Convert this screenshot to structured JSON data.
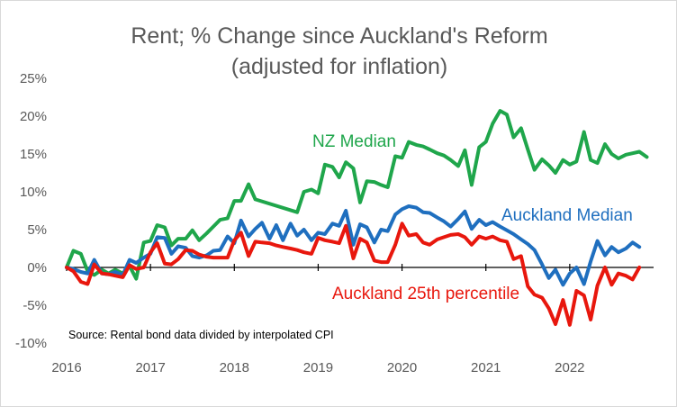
{
  "chart_data": {
    "type": "line",
    "title": "Rent; % Change since Auckland's Reform",
    "subtitle": "(adjusted for inflation)",
    "xlabel": "",
    "ylabel": "",
    "xlim": [
      2016.0,
      2023.0
    ],
    "ylim": [
      -10,
      25
    ],
    "y_ticks": [
      {
        "value": 25,
        "label": "25%"
      },
      {
        "value": 20,
        "label": "20%"
      },
      {
        "value": 15,
        "label": "15%"
      },
      {
        "value": 10,
        "label": "10%"
      },
      {
        "value": 5,
        "label": "5%"
      },
      {
        "value": 0,
        "label": "0%"
      },
      {
        "value": -5,
        "label": "-5%"
      },
      {
        "value": -10,
        "label": "-10%"
      }
    ],
    "x_ticks": [
      {
        "value": 2016,
        "label": "2016"
      },
      {
        "value": 2017,
        "label": "2017"
      },
      {
        "value": 2018,
        "label": "2018"
      },
      {
        "value": 2019,
        "label": "2019"
      },
      {
        "value": 2020,
        "label": "2020"
      },
      {
        "value": 2021,
        "label": "2021"
      },
      {
        "value": 2022,
        "label": "2022"
      }
    ],
    "grid": false,
    "legend": "inline labels",
    "annotation": "Source: Rental bond data divided by interpolated CPI",
    "series": [
      {
        "name": "NZ Median",
        "color": "#1fa64b",
        "points": [
          [
            2016.0,
            0.0
          ],
          [
            2016.08,
            2.2
          ],
          [
            2016.17,
            1.8
          ],
          [
            2016.25,
            -0.5
          ],
          [
            2016.33,
            -1.0
          ],
          [
            2016.42,
            -0.3
          ],
          [
            2016.5,
            -0.8
          ],
          [
            2016.58,
            -0.3
          ],
          [
            2016.67,
            -0.8
          ],
          [
            2016.75,
            0.2
          ],
          [
            2016.83,
            -1.5
          ],
          [
            2016.92,
            3.3
          ],
          [
            2017.0,
            3.5
          ],
          [
            2017.08,
            5.6
          ],
          [
            2017.17,
            5.3
          ],
          [
            2017.25,
            2.9
          ],
          [
            2017.33,
            3.8
          ],
          [
            2017.42,
            3.8
          ],
          [
            2017.5,
            4.9
          ],
          [
            2017.58,
            3.6
          ],
          [
            2017.67,
            4.5
          ],
          [
            2017.75,
            5.4
          ],
          [
            2017.83,
            6.3
          ],
          [
            2017.92,
            6.5
          ],
          [
            2018.0,
            8.8
          ],
          [
            2018.08,
            8.8
          ],
          [
            2018.17,
            11.0
          ],
          [
            2018.25,
            9.0
          ],
          [
            2018.75,
            7.3
          ],
          [
            2018.83,
            10.0
          ],
          [
            2018.92,
            10.3
          ],
          [
            2019.0,
            9.8
          ],
          [
            2019.08,
            13.6
          ],
          [
            2019.17,
            13.3
          ],
          [
            2019.25,
            11.9
          ],
          [
            2019.33,
            13.9
          ],
          [
            2019.42,
            13.1
          ],
          [
            2019.5,
            8.6
          ],
          [
            2019.58,
            11.4
          ],
          [
            2019.67,
            11.3
          ],
          [
            2019.75,
            10.9
          ],
          [
            2019.83,
            10.6
          ],
          [
            2019.92,
            14.7
          ],
          [
            2020.0,
            14.5
          ],
          [
            2020.08,
            16.6
          ],
          [
            2020.17,
            16.2
          ],
          [
            2020.25,
            16.0
          ],
          [
            2020.33,
            15.6
          ],
          [
            2020.42,
            15.1
          ],
          [
            2020.5,
            14.8
          ],
          [
            2020.58,
            14.2
          ],
          [
            2020.67,
            13.4
          ],
          [
            2020.75,
            15.5
          ],
          [
            2020.83,
            10.9
          ],
          [
            2020.92,
            15.9
          ],
          [
            2021.0,
            16.6
          ],
          [
            2021.08,
            19.0
          ],
          [
            2021.17,
            20.7
          ],
          [
            2021.25,
            20.2
          ],
          [
            2021.33,
            17.2
          ],
          [
            2021.42,
            18.4
          ],
          [
            2021.5,
            15.6
          ],
          [
            2021.58,
            12.9
          ],
          [
            2021.67,
            14.3
          ],
          [
            2021.75,
            13.5
          ],
          [
            2021.83,
            12.5
          ],
          [
            2021.92,
            14.2
          ],
          [
            2022.0,
            13.6
          ],
          [
            2022.08,
            14.0
          ],
          [
            2022.17,
            17.9
          ],
          [
            2022.25,
            14.2
          ],
          [
            2022.33,
            13.8
          ],
          [
            2022.42,
            16.3
          ],
          [
            2022.5,
            15.0
          ],
          [
            2022.58,
            14.4
          ],
          [
            2022.67,
            14.9
          ],
          [
            2022.75,
            15.1
          ],
          [
            2022.83,
            15.3
          ],
          [
            2022.92,
            14.6
          ]
        ]
      },
      {
        "name": "Auckland Median",
        "color": "#1f6fbf",
        "points": [
          [
            2016.0,
            0.0
          ],
          [
            2016.08,
            -0.2
          ],
          [
            2016.17,
            -0.6
          ],
          [
            2016.25,
            -0.8
          ],
          [
            2016.33,
            1.0
          ],
          [
            2016.42,
            -0.8
          ],
          [
            2016.5,
            -0.9
          ],
          [
            2016.58,
            -0.6
          ],
          [
            2016.67,
            -1.0
          ],
          [
            2016.75,
            1.0
          ],
          [
            2016.83,
            0.6
          ],
          [
            2016.92,
            1.3
          ],
          [
            2017.0,
            1.8
          ],
          [
            2017.08,
            4.0
          ],
          [
            2017.17,
            3.9
          ],
          [
            2017.25,
            1.8
          ],
          [
            2017.33,
            2.8
          ],
          [
            2017.42,
            2.6
          ],
          [
            2017.5,
            1.5
          ],
          [
            2017.58,
            1.3
          ],
          [
            2017.67,
            1.6
          ],
          [
            2017.75,
            2.2
          ],
          [
            2017.83,
            2.3
          ],
          [
            2017.92,
            4.1
          ],
          [
            2018.0,
            3.2
          ],
          [
            2018.08,
            6.2
          ],
          [
            2018.17,
            4.1
          ],
          [
            2018.25,
            5.1
          ],
          [
            2018.33,
            5.9
          ],
          [
            2018.42,
            3.8
          ],
          [
            2018.5,
            5.6
          ],
          [
            2018.58,
            3.6
          ],
          [
            2018.67,
            5.8
          ],
          [
            2018.75,
            4.2
          ],
          [
            2018.83,
            5.0
          ],
          [
            2018.92,
            3.6
          ],
          [
            2019.0,
            4.6
          ],
          [
            2019.08,
            4.4
          ],
          [
            2019.17,
            5.8
          ],
          [
            2019.25,
            5.5
          ],
          [
            2019.33,
            7.5
          ],
          [
            2019.42,
            3.0
          ],
          [
            2019.5,
            5.7
          ],
          [
            2019.58,
            5.3
          ],
          [
            2019.67,
            3.3
          ],
          [
            2019.75,
            5.0
          ],
          [
            2019.83,
            4.8
          ],
          [
            2019.92,
            7.0
          ],
          [
            2020.0,
            7.7
          ],
          [
            2020.08,
            8.1
          ],
          [
            2020.17,
            7.9
          ],
          [
            2020.25,
            7.3
          ],
          [
            2020.33,
            7.2
          ],
          [
            2020.42,
            6.6
          ],
          [
            2020.5,
            6.1
          ],
          [
            2020.58,
            5.4
          ],
          [
            2020.67,
            6.4
          ],
          [
            2020.75,
            7.4
          ],
          [
            2020.83,
            5.1
          ],
          [
            2020.92,
            6.3
          ],
          [
            2021.0,
            5.6
          ],
          [
            2021.08,
            6.0
          ],
          [
            2021.17,
            5.4
          ],
          [
            2021.25,
            4.9
          ],
          [
            2021.33,
            4.4
          ],
          [
            2021.42,
            3.7
          ],
          [
            2021.5,
            3.1
          ],
          [
            2021.58,
            2.3
          ],
          [
            2021.67,
            0.4
          ],
          [
            2021.75,
            -1.4
          ],
          [
            2021.83,
            -0.3
          ],
          [
            2021.92,
            -2.3
          ],
          [
            2022.0,
            -0.8
          ],
          [
            2022.08,
            0.0
          ],
          [
            2022.17,
            -2.2
          ],
          [
            2022.25,
            0.8
          ],
          [
            2022.33,
            3.5
          ],
          [
            2022.42,
            1.6
          ],
          [
            2022.5,
            2.7
          ],
          [
            2022.58,
            2.0
          ],
          [
            2022.67,
            2.5
          ],
          [
            2022.75,
            3.3
          ],
          [
            2022.83,
            2.7
          ]
        ]
      },
      {
        "name": "Auckland 25th percentile",
        "color": "#e8170d",
        "points": [
          [
            2016.0,
            0.0
          ],
          [
            2016.08,
            -0.5
          ],
          [
            2016.17,
            -1.9
          ],
          [
            2016.25,
            -2.2
          ],
          [
            2016.33,
            0.4
          ],
          [
            2016.42,
            -0.8
          ],
          [
            2016.5,
            -0.9
          ],
          [
            2016.58,
            -1.1
          ],
          [
            2016.67,
            -1.3
          ],
          [
            2016.75,
            0.3
          ],
          [
            2016.83,
            -0.2
          ],
          [
            2016.92,
            0.0
          ],
          [
            2017.0,
            2.0
          ],
          [
            2017.08,
            3.2
          ],
          [
            2017.17,
            0.5
          ],
          [
            2017.25,
            0.4
          ],
          [
            2017.33,
            1.1
          ],
          [
            2017.42,
            2.3
          ],
          [
            2017.5,
            2.2
          ],
          [
            2017.58,
            1.7
          ],
          [
            2017.67,
            1.4
          ],
          [
            2017.75,
            1.3
          ],
          [
            2017.83,
            1.3
          ],
          [
            2017.92,
            1.3
          ],
          [
            2018.0,
            3.6
          ],
          [
            2018.08,
            4.6
          ],
          [
            2018.17,
            1.5
          ],
          [
            2018.25,
            3.4
          ],
          [
            2018.33,
            3.3
          ],
          [
            2018.42,
            3.2
          ],
          [
            2018.5,
            2.9
          ],
          [
            2018.58,
            2.7
          ],
          [
            2018.67,
            2.5
          ],
          [
            2018.75,
            2.3
          ],
          [
            2018.83,
            2.0
          ],
          [
            2018.92,
            1.8
          ],
          [
            2019.0,
            3.9
          ],
          [
            2019.08,
            3.6
          ],
          [
            2019.17,
            3.4
          ],
          [
            2019.25,
            3.2
          ],
          [
            2019.33,
            5.5
          ],
          [
            2019.42,
            1.2
          ],
          [
            2019.5,
            3.8
          ],
          [
            2019.58,
            3.3
          ],
          [
            2019.67,
            0.9
          ],
          [
            2019.75,
            0.7
          ],
          [
            2019.83,
            0.7
          ],
          [
            2019.92,
            3.0
          ],
          [
            2020.0,
            5.8
          ],
          [
            2020.08,
            4.2
          ],
          [
            2020.17,
            4.4
          ],
          [
            2020.25,
            3.3
          ],
          [
            2020.33,
            3.0
          ],
          [
            2020.42,
            3.7
          ],
          [
            2020.5,
            4.0
          ],
          [
            2020.58,
            4.3
          ],
          [
            2020.67,
            4.4
          ],
          [
            2020.75,
            4.0
          ],
          [
            2020.83,
            3.0
          ],
          [
            2020.92,
            4.1
          ],
          [
            2021.0,
            3.8
          ],
          [
            2021.08,
            4.1
          ],
          [
            2021.17,
            3.6
          ],
          [
            2021.25,
            3.4
          ],
          [
            2021.33,
            1.1
          ],
          [
            2021.42,
            1.5
          ],
          [
            2021.5,
            -2.5
          ],
          [
            2021.58,
            -3.6
          ],
          [
            2021.67,
            -4.0
          ],
          [
            2021.75,
            -5.4
          ],
          [
            2021.83,
            -7.5
          ],
          [
            2021.92,
            -4.3
          ],
          [
            2022.0,
            -7.6
          ],
          [
            2022.08,
            -3.1
          ],
          [
            2022.17,
            -3.7
          ],
          [
            2022.25,
            -6.9
          ],
          [
            2022.33,
            -2.4
          ],
          [
            2022.42,
            0.0
          ],
          [
            2022.5,
            -2.3
          ],
          [
            2022.58,
            -0.8
          ],
          [
            2022.67,
            -1.1
          ],
          [
            2022.75,
            -1.6
          ],
          [
            2022.83,
            0.0
          ]
        ]
      }
    ]
  }
}
